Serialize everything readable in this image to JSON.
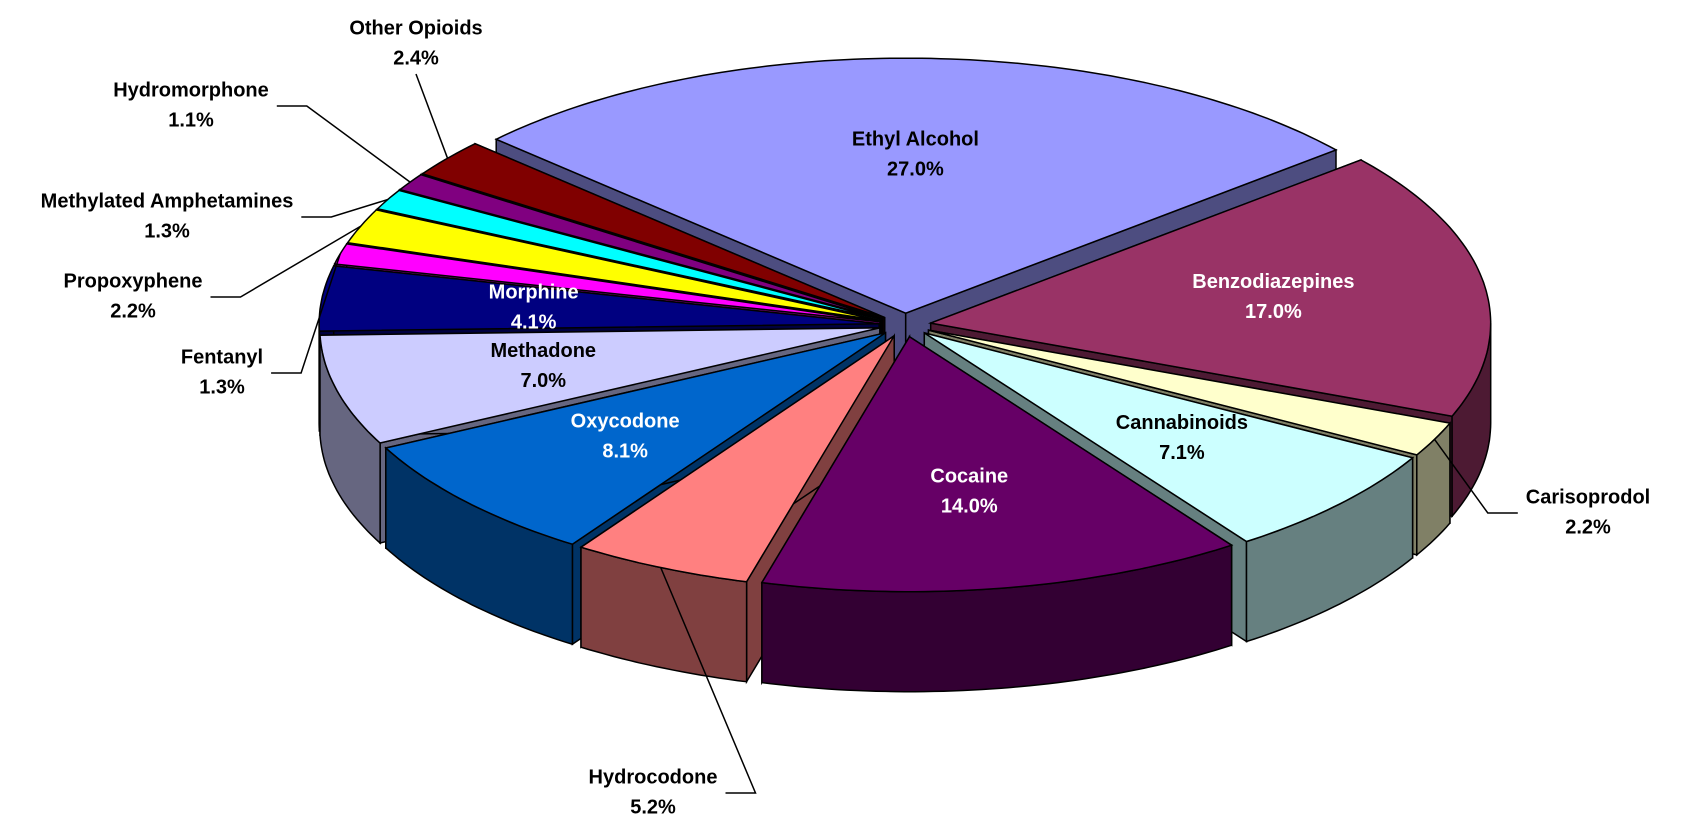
{
  "chart_data": {
    "type": "pie",
    "categories": [
      "Ethyl Alcohol",
      "Benzodiazepines",
      "Carisoprodol",
      "Cannabinoids",
      "Cocaine",
      "Hydrocodone",
      "Oxycodone",
      "Methadone",
      "Morphine",
      "Fentanyl",
      "Propoxyphene",
      "Methylated Amphetamines",
      "Hydromorphone",
      "Other Opioids"
    ],
    "values": [
      27.0,
      17.0,
      2.2,
      7.1,
      14.0,
      5.2,
      8.1,
      7.0,
      4.1,
      1.3,
      2.2,
      1.3,
      1.1,
      2.4
    ],
    "value_labels": [
      "27.0%",
      "17.0%",
      "2.2%",
      "7.1%",
      "14.0%",
      "5.2%",
      "8.1%",
      "7.0%",
      "4.1%",
      "1.3%",
      "2.2%",
      "1.3%",
      "1.1%",
      "2.4%"
    ],
    "colors": [
      "#9999ff",
      "#993366",
      "#ffffcc",
      "#ccffff",
      "#660066",
      "#ff8080",
      "#0066cc",
      "#ccccff",
      "#000080",
      "#ff00ff",
      "#ffff00",
      "#00ffff",
      "#800080",
      "#800000"
    ]
  }
}
